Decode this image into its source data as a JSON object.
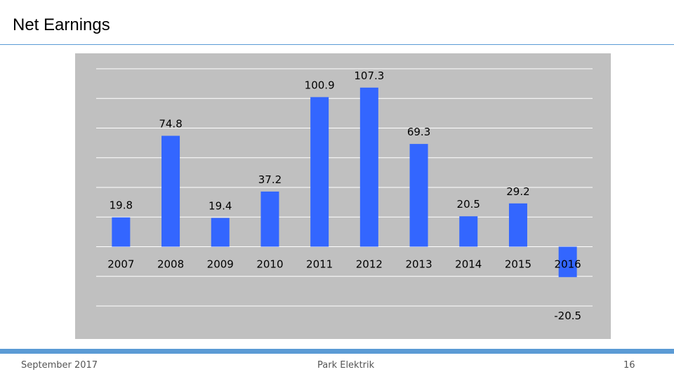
{
  "slide": {
    "title": "Net Earnings",
    "footer_date": "September 2017",
    "footer_company": "Park Elektrik",
    "page_number": "16"
  },
  "colors": {
    "bar": "#3366ff",
    "panel": "#c0c0c0",
    "gridline": "#ffffff",
    "accent": "#5b9bd5"
  },
  "chart_data": {
    "type": "bar",
    "title": "",
    "xlabel": "",
    "ylabel": "",
    "categories": [
      "2007",
      "2008",
      "2009",
      "2010",
      "2011",
      "2012",
      "2013",
      "2014",
      "2015",
      "2016"
    ],
    "values": [
      19.8,
      74.8,
      19.4,
      37.2,
      100.9,
      107.3,
      69.3,
      20.5,
      29.2,
      -20.5
    ],
    "data_labels": [
      "19.8",
      "74.8",
      "19.4",
      "37.2",
      "100.9",
      "107.3",
      "69.3",
      "20.5",
      "29.2",
      "-20.5"
    ],
    "ylim": [
      -40,
      120
    ],
    "grid": true,
    "legend": "none"
  }
}
